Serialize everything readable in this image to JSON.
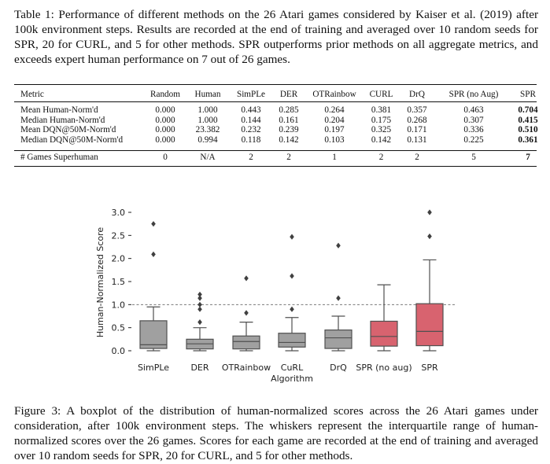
{
  "table_caption": "Table 1: Performance of different methods on the 26 Atari games considered by Kaiser et al. (2019) after 100k environment steps. Results are recorded at the end of training and averaged over 10 random seeds for SPR, 20 for CURL, and 5 for other methods. SPR outperforms prior methods on all aggregate metrics, and exceeds expert human performance on 7 out of 26 games.",
  "table": {
    "headers": [
      "Metric",
      "Random",
      "Human",
      "SimPLe",
      "DER",
      "OTRainbow",
      "CURL",
      "DrQ",
      "SPR (no Aug)",
      "SPR"
    ],
    "rows": [
      [
        "Mean Human-Norm'd",
        "0.000",
        "1.000",
        "0.443",
        "0.285",
        "0.264",
        "0.381",
        "0.357",
        "0.463",
        "0.704"
      ],
      [
        "Median Human-Norm'd",
        "0.000",
        "1.000",
        "0.144",
        "0.161",
        "0.204",
        "0.175",
        "0.268",
        "0.307",
        "0.415"
      ],
      [
        "Mean DQN@50M-Norm'd",
        "0.000",
        "23.382",
        "0.232",
        "0.239",
        "0.197",
        "0.325",
        "0.171",
        "0.336",
        "0.510"
      ],
      [
        "Median DQN@50M-Norm'd",
        "0.000",
        "0.994",
        "0.118",
        "0.142",
        "0.103",
        "0.142",
        "0.131",
        "0.225",
        "0.361"
      ]
    ],
    "summary_row": [
      "# Games Superhuman",
      "0",
      "N/A",
      "2",
      "2",
      "1",
      "2",
      "2",
      "5",
      "7"
    ]
  },
  "chart_data": {
    "type": "boxplot",
    "xlabel": "Algorithm",
    "ylabel": "Human-Normalized Score",
    "ylim": [
      -0.05,
      3.2
    ],
    "yticks": [
      "0.0",
      "0.5",
      "1.0",
      "1.5",
      "2.0",
      "2.5",
      "3.0"
    ],
    "reference_line": 1.0,
    "colors": {
      "baseline": "#a0a0a0",
      "spr": "#d8636f",
      "edge": "#505050"
    },
    "boxes": [
      {
        "name": "SimPLe",
        "whisker_low": 0.0,
        "q1": 0.05,
        "median": 0.13,
        "q3": 0.65,
        "whisker_high": 0.95,
        "outliers": [
          2.09,
          2.75
        ]
      },
      {
        "name": "DER",
        "whisker_low": 0.0,
        "q1": 0.04,
        "median": 0.15,
        "q3": 0.25,
        "whisker_high": 0.5,
        "outliers": [
          0.62,
          0.9,
          1.0,
          1.14,
          1.22
        ]
      },
      {
        "name": "OTRainbow",
        "whisker_low": 0.0,
        "q1": 0.04,
        "median": 0.2,
        "q3": 0.32,
        "whisker_high": 0.62,
        "outliers": [
          0.82,
          1.57
        ]
      },
      {
        "name": "CuRL",
        "whisker_low": 0.0,
        "q1": 0.08,
        "median": 0.18,
        "q3": 0.38,
        "whisker_high": 0.72,
        "outliers": [
          0.9,
          1.62,
          2.47
        ]
      },
      {
        "name": "DrQ",
        "whisker_low": 0.0,
        "q1": 0.05,
        "median": 0.28,
        "q3": 0.45,
        "whisker_high": 0.75,
        "outliers": [
          1.14,
          2.28
        ]
      },
      {
        "name": "SPR (no aug)",
        "whisker_low": 0.0,
        "q1": 0.1,
        "median": 0.31,
        "q3": 0.64,
        "whisker_high": 1.43,
        "outliers": []
      },
      {
        "name": "SPR",
        "whisker_low": 0.0,
        "q1": 0.11,
        "median": 0.42,
        "q3": 1.02,
        "whisker_high": 1.97,
        "outliers": [
          2.48,
          3.0
        ]
      }
    ]
  },
  "figure_caption": "Figure 3: A boxplot of the distribution of human-normalized scores across the 26 Atari games under consideration, after 100k environment steps. The whiskers represent the interquartile range of human-normalized scores over the 26 games. Scores for each game are recorded at the end of training and averaged over 10 random seeds for SPR, 20 for CURL, and 5 for other methods."
}
